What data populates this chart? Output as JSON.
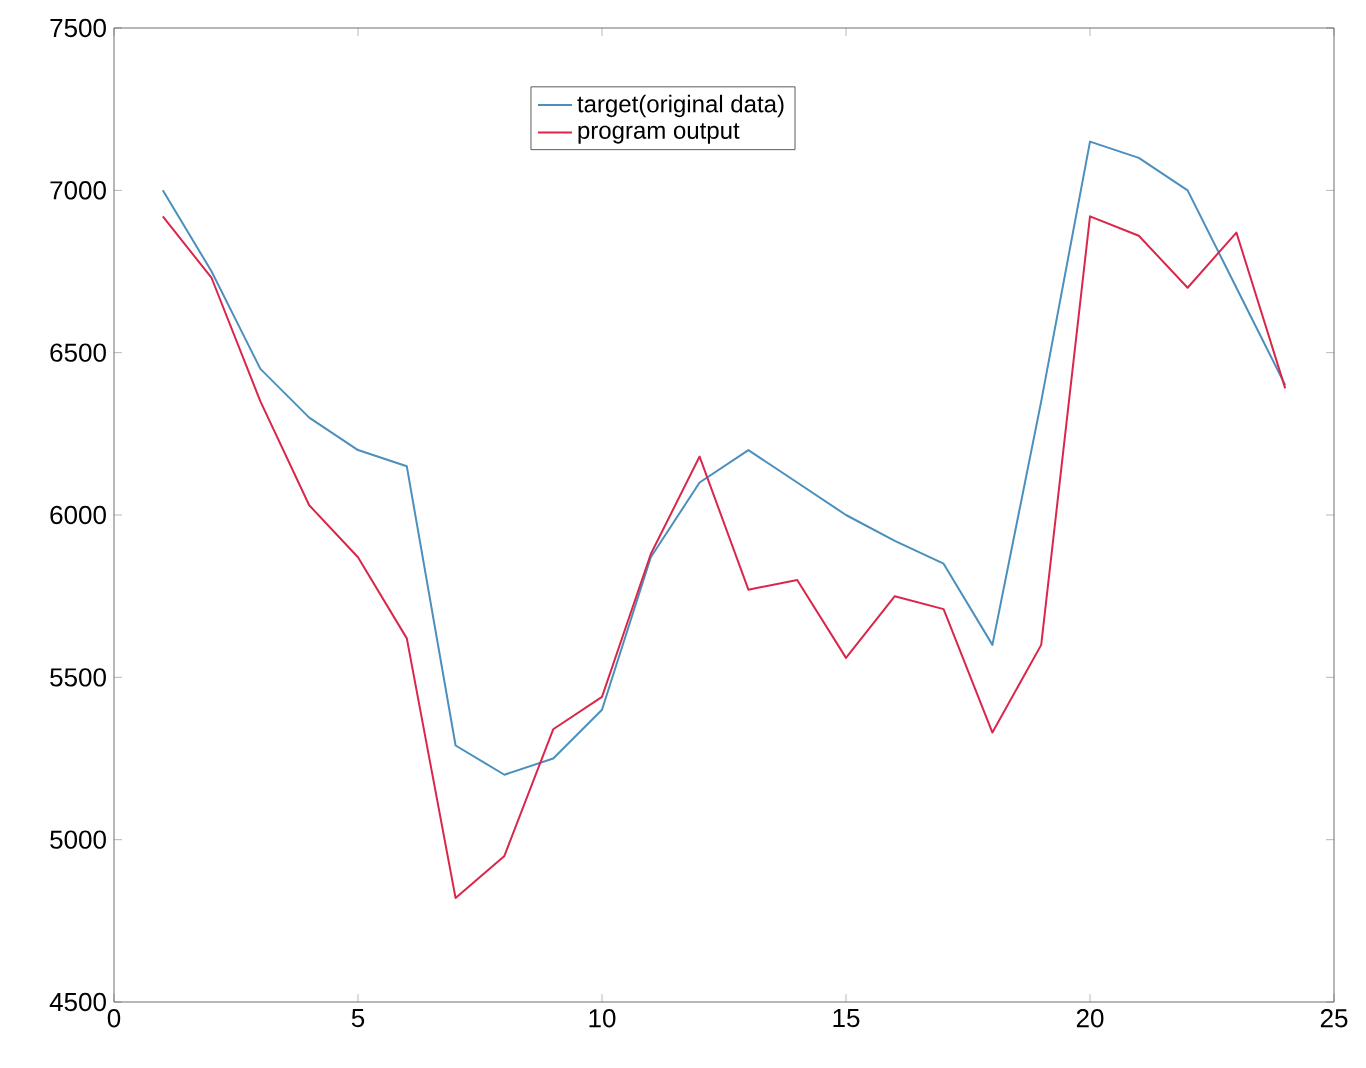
{
  "chart_data": {
    "type": "line",
    "x": [
      1,
      2,
      3,
      4,
      5,
      6,
      7,
      8,
      9,
      10,
      11,
      12,
      13,
      14,
      15,
      16,
      17,
      18,
      19,
      20,
      21,
      22,
      23,
      24
    ],
    "series": [
      {
        "name": "target(original data)",
        "color": "#4a8fbd",
        "values": [
          7000,
          6750,
          6450,
          6300,
          6200,
          6150,
          5290,
          5200,
          5250,
          5400,
          5870,
          6100,
          6200,
          6100,
          6000,
          5920,
          5850,
          5600,
          6350,
          7150,
          7100,
          7000,
          6700,
          6400
        ]
      },
      {
        "name": "program output",
        "color": "#d9264a",
        "values": [
          6920,
          6730,
          6350,
          6030,
          5870,
          5620,
          4820,
          4950,
          5340,
          5440,
          5880,
          6180,
          5770,
          5800,
          5560,
          5750,
          5710,
          5330,
          5600,
          6920,
          6860,
          6700,
          6870,
          6390
        ]
      }
    ],
    "xlim": [
      0,
      25
    ],
    "xticks": [
      0,
      5,
      10,
      15,
      20,
      25
    ],
    "ylim": [
      4500,
      7500
    ],
    "yticks": [
      4500,
      5000,
      5500,
      6000,
      6500,
      7000,
      7500
    ],
    "grid": false,
    "legend": "top",
    "marker": "none",
    "line_style": "solid"
  }
}
